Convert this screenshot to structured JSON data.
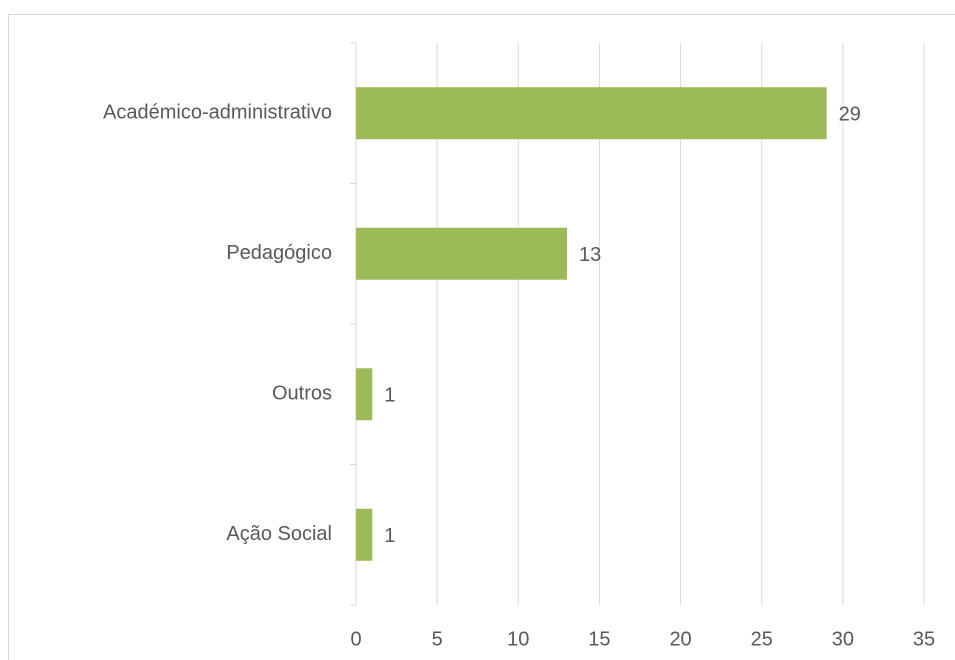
{
  "chart_data": {
    "type": "bar",
    "orientation": "horizontal",
    "categories": [
      "Académico-administrativo",
      "Pedagógico",
      "Outros",
      "Ação Social"
    ],
    "values": [
      29,
      13,
      1,
      1
    ],
    "color": "#9bbb59",
    "xlim": [
      0,
      35
    ],
    "xticks": [
      0,
      5,
      10,
      15,
      20,
      25,
      30,
      35
    ],
    "grid": true
  }
}
